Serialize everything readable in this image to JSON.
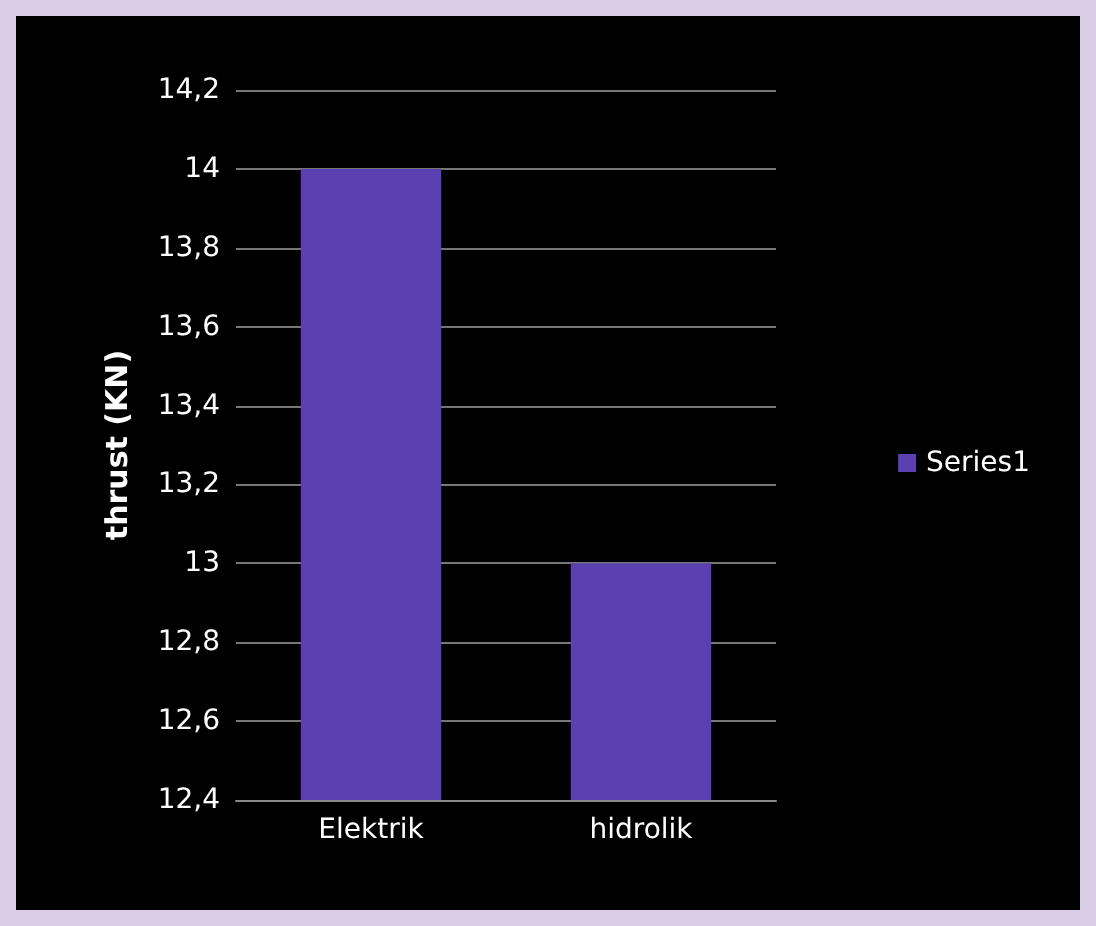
{
  "chart_data": {
    "type": "bar",
    "ylabel": "thrust (KN)",
    "categories": [
      "Elektrik",
      "hidrolik"
    ],
    "series": [
      {
        "name": "Series1",
        "color": "#5a40b0",
        "values": [
          14,
          13
        ]
      }
    ],
    "ylim": [
      12.4,
      14.2
    ],
    "yticks": [
      {
        "value": 12.4,
        "label": "12,4"
      },
      {
        "value": 12.6,
        "label": "12,6"
      },
      {
        "value": 12.8,
        "label": "12,8"
      },
      13,
      {
        "value": 13.2,
        "label": "13,2"
      },
      {
        "value": 13.4,
        "label": "13,4"
      },
      {
        "value": 13.6,
        "label": "13,6"
      },
      {
        "value": 13.8,
        "label": "13,8"
      },
      14,
      {
        "value": 14.2,
        "label": "14,2"
      }
    ],
    "grid": "y",
    "legend": "right"
  }
}
